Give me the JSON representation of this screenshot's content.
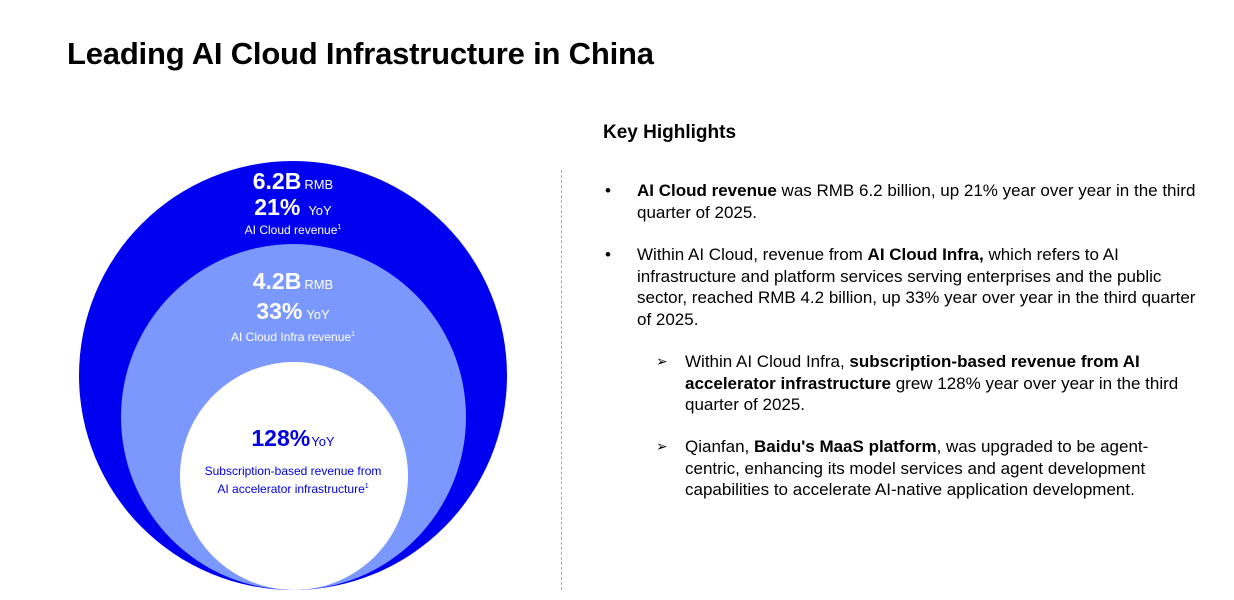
{
  "title": "Leading AI Cloud Infrastructure in China",
  "diagram": {
    "outer": {
      "value": "6.2B",
      "unit": "RMB",
      "growth": "21%",
      "growth_unit": "YoY",
      "label": "AI Cloud revenue",
      "footnote": "1",
      "color": "#0000f0"
    },
    "middle": {
      "value": "4.2B",
      "unit": "RMB",
      "growth": "33%",
      "growth_unit": "YoY",
      "label": "AI Cloud Infra revenue",
      "footnote": "1",
      "color": "#7b98ff"
    },
    "inner": {
      "growth": "128%",
      "growth_unit": "YoY",
      "label_line1": "Subscription-based revenue from",
      "label_line2": "AI accelerator infrastructure",
      "footnote": "1",
      "color": "#ffffff"
    }
  },
  "highlights": {
    "heading": "Key Highlights",
    "bullets": [
      {
        "marker": "•",
        "segments": [
          {
            "t": "AI Cloud revenue"
          },
          {
            "t": " was RMB 6.2 billion, up 21% year over year in the third quarter of 2025."
          }
        ]
      },
      {
        "marker": "•",
        "segments": [
          {
            "t": "Within AI Cloud, revenue from "
          },
          {
            "t": "AI Cloud Infra,"
          },
          {
            "t": " which refers to AI infrastructure and platform services serving enterprises and the public sector, reached RMB 4.2 billion, up 33% year over year in the third quarter of 2025."
          }
        ]
      },
      {
        "marker": "➢",
        "segments": [
          {
            "t": "Within AI Cloud Infra, "
          },
          {
            "t": "subscription-based revenue from AI accelerator infrastructure"
          },
          {
            "t": " grew 128% year over year in the third quarter of 2025."
          }
        ]
      },
      {
        "marker": "➢",
        "segments": [
          {
            "t": "Qianfan, "
          },
          {
            "t": "Baidu's MaaS platform"
          },
          {
            "t": ", was upgraded to be agent-centric, enhancing its model services and agent development capabilities to accelerate AI-native application development."
          }
        ]
      }
    ]
  }
}
